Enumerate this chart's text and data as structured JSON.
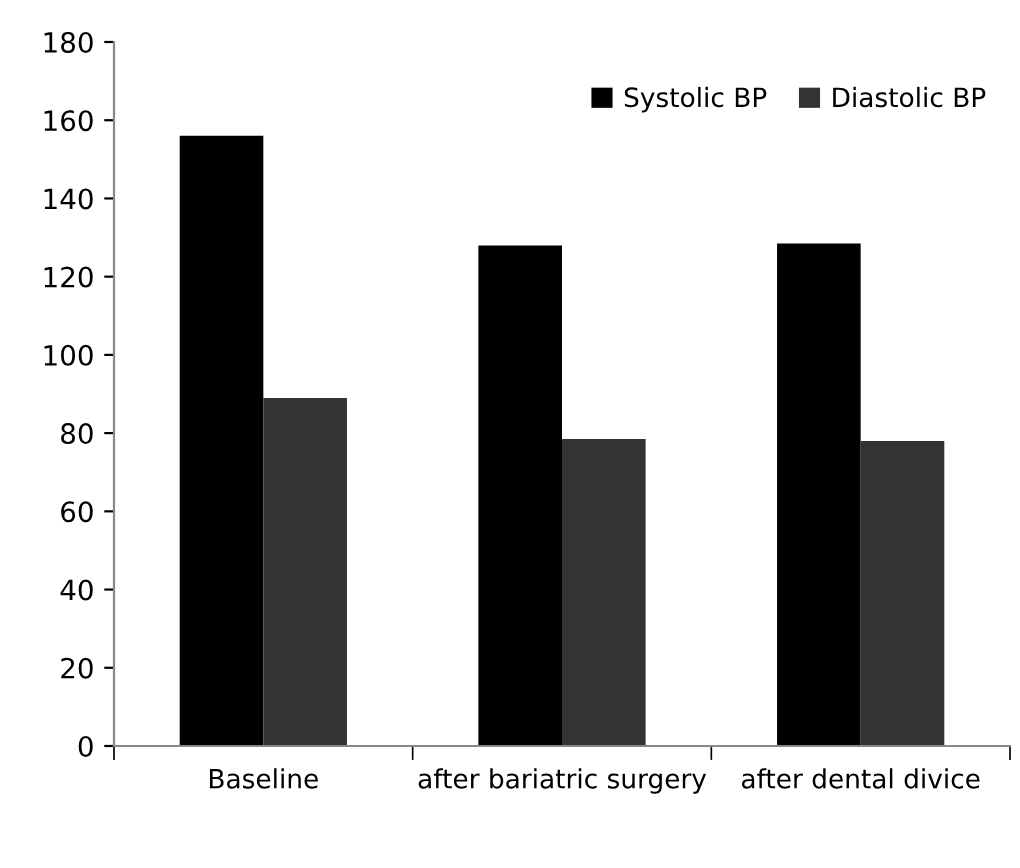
{
  "chart_data": {
    "type": "bar",
    "categories": [
      "Baseline",
      "after bariatric surgery",
      "after dental divice"
    ],
    "series": [
      {
        "name": "Systolic BP",
        "color": "#000000",
        "values": [
          156,
          128,
          128.5
        ]
      },
      {
        "name": "Diastolic BP",
        "color": "#333333",
        "values": [
          89,
          78.5,
          78
        ]
      }
    ],
    "ylim": [
      0,
      180
    ],
    "yticks": [
      0,
      20,
      40,
      60,
      80,
      100,
      120,
      140,
      160,
      180
    ],
    "grid": false,
    "legend": "top right"
  }
}
